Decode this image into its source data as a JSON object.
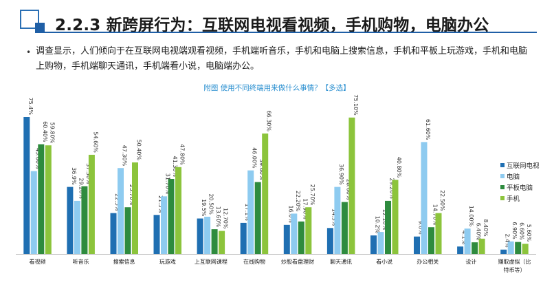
{
  "header": {
    "title": "2.2.3  新跨屏行为：互联网电视看视频，手机购物，电脑办公"
  },
  "bullet": {
    "text": "调查显示，人们倾向于在互联网电视端观看视频，手机端听音乐，手机和电脑上搜索信息，手机和平板上玩游戏，手机和电脑上购物，手机端聊天通讯，手机端看小说，电脑端办公。"
  },
  "colors": {
    "accent": "#1f5fa6",
    "tv": "#1f6fb2",
    "pc": "#8ecbf0",
    "tablet": "#2e8b3e",
    "phone": "#8cc43c"
  },
  "chart_data": {
    "type": "bar",
    "title": "附图  使用不同终端用来做什么事情？【多选】",
    "categories": [
      "看视频",
      "听音乐",
      "搜索信息",
      "玩游戏",
      "上互联网课程",
      "在线购物",
      "炒股看盘理财",
      "聊天通讯",
      "看小说",
      "办公相关",
      "设计",
      "赚取虚拟（比特币等）"
    ],
    "series": [
      {
        "name": "互联网电视",
        "values": [
          75.4,
          36.9,
          22.5,
          21.5,
          19.5,
          17.1,
          16.0,
          14.3,
          10.2,
          9.6,
          4.1,
          2.4
        ],
        "labels": [
          "75.4%",
          "36.9%",
          "22.5%",
          "21.5%",
          "19.5%",
          "17.1%",
          "16.0%",
          "14.3%",
          "10.2%",
          "9.6%",
          "4.1%",
          "2.4%"
        ]
      },
      {
        "name": "电脑",
        "values": [
          45.6,
          29.2,
          47.3,
          31.7,
          20.5,
          46.0,
          22.2,
          36.9,
          12.1,
          61.6,
          14.0,
          6.9
        ],
        "labels": [
          "45.60%",
          "29.20%",
          "47.30%",
          "31.70%",
          "20.50%",
          "46.00%",
          "22.20%",
          "36.90%",
          "12.10%",
          "61.60%",
          "14.00%",
          "6.90%"
        ]
      },
      {
        "name": "平板电脑",
        "values": [
          60.4,
          37.3,
          25.7,
          41.3,
          13.6,
          39.6,
          17.9,
          28.6,
          29.2,
          14.7,
          6.4,
          6.6
        ],
        "labels": [
          "60.40%",
          "37.30%",
          "25.70%",
          "41.30%",
          "13.60%",
          "39.60%",
          "17.90%",
          "28.60%",
          "29.20%",
          "14.70%",
          "6.40%",
          "6.60%"
        ]
      },
      {
        "name": "手机",
        "values": [
          59.8,
          54.6,
          50.4,
          47.8,
          12.7,
          66.3,
          25.7,
          75.1,
          40.8,
          22.5,
          8.4,
          5.6
        ],
        "labels": [
          "59.80%",
          "54.60%",
          "50.40%",
          "47.80%",
          "12.70%",
          "66.30%",
          "25.70%",
          "75.10%",
          "40.80%",
          "22.50%",
          "8.40%",
          "5.60%"
        ]
      }
    ],
    "ylim": [
      0,
      80
    ],
    "legend_position": "right",
    "grid": false
  }
}
